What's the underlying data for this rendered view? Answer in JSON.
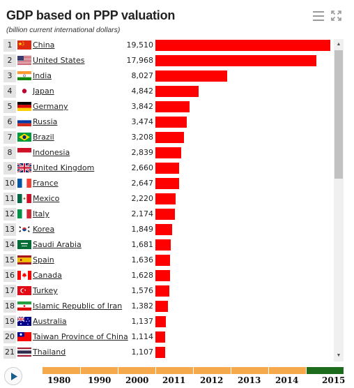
{
  "header": {
    "title": "GDP based on PPP valuation",
    "subtitle": "(billion current international dollars)",
    "menu_icon": "hamburger-menu-icon",
    "expand_icon": "expand-arrows-icon"
  },
  "chart_data": {
    "type": "bar",
    "orientation": "horizontal",
    "title": "GDP based on PPP valuation",
    "subtitle": "(billion current international dollars)",
    "categories": [
      "China",
      "United States",
      "India",
      "Japan",
      "Germany",
      "Russia",
      "Brazil",
      "Indonesia",
      "United Kingdom",
      "France",
      "Mexico",
      "Italy",
      "Korea",
      "Saudi Arabia",
      "Spain",
      "Canada",
      "Turkey",
      "Islamic Republic of Iran",
      "Australia",
      "Taiwan Province of China",
      "Thailand"
    ],
    "values": [
      19510,
      17968,
      8027,
      4842,
      3842,
      3474,
      3208,
      2839,
      2660,
      2647,
      2220,
      2174,
      1849,
      1681,
      1636,
      1628,
      1576,
      1382,
      1137,
      1114,
      1107
    ],
    "value_labels": [
      "19,510",
      "17,968",
      "8,027",
      "4,842",
      "3,842",
      "3,474",
      "3,208",
      "2,839",
      "2,660",
      "2,647",
      "2,220",
      "2,174",
      "1,849",
      "1,681",
      "1,636",
      "1,628",
      "1,576",
      "1,382",
      "1,137",
      "1,114",
      "1,107"
    ],
    "ranks": [
      "1",
      "2",
      "3",
      "4",
      "5",
      "6",
      "7",
      "8",
      "9",
      "10",
      "11",
      "12",
      "13",
      "14",
      "15",
      "16",
      "17",
      "18",
      "19",
      "20",
      "21"
    ],
    "bar_color": "#ff0000",
    "xlim": [
      0,
      19510
    ]
  },
  "flags": [
    "china-flag-icon",
    "united-states-flag-icon",
    "india-flag-icon",
    "japan-flag-icon",
    "germany-flag-icon",
    "russia-flag-icon",
    "brazil-flag-icon",
    "indonesia-flag-icon",
    "united-kingdom-flag-icon",
    "france-flag-icon",
    "mexico-flag-icon",
    "italy-flag-icon",
    "korea-flag-icon",
    "saudi-arabia-flag-icon",
    "spain-flag-icon",
    "canada-flag-icon",
    "turkey-flag-icon",
    "iran-flag-icon",
    "australia-flag-icon",
    "taiwan-flag-icon",
    "thailand-flag-icon"
  ],
  "scrollbar": {
    "up_icon": "scroll-up-arrow-icon",
    "down_icon": "scroll-down-arrow-icon"
  },
  "timeline": {
    "play_icon": "play-icon",
    "years": [
      "1980",
      "1990",
      "2000",
      "2011",
      "2012",
      "2013",
      "2014",
      "2015"
    ],
    "selected_year": "2015",
    "inactive_color": "#f5a94b",
    "active_color": "#1d6b1d"
  }
}
